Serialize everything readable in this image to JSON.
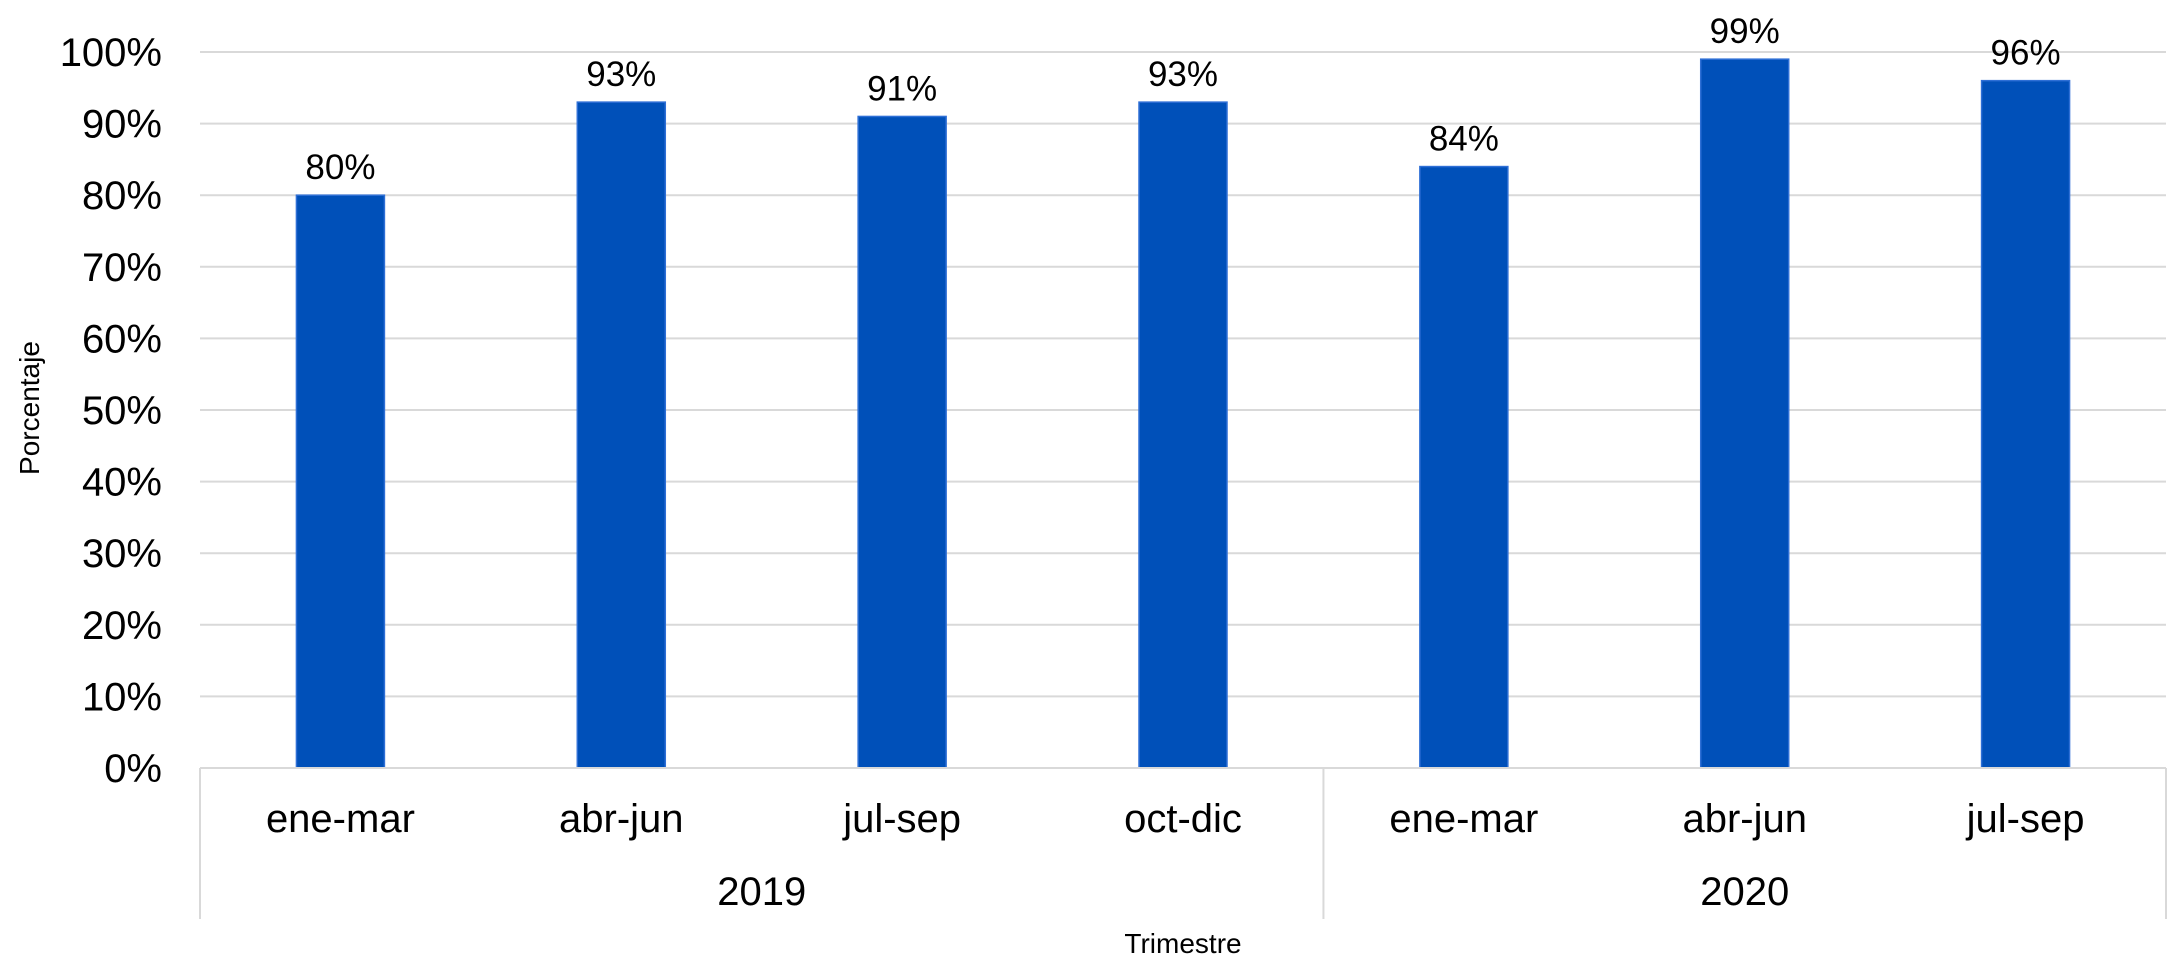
{
  "chart_data": {
    "type": "bar",
    "title": "",
    "xlabel": "Trimestre",
    "ylabel": "Porcentaje",
    "ylim": [
      0,
      100
    ],
    "y_ticks": [
      0,
      10,
      20,
      30,
      40,
      50,
      60,
      70,
      80,
      90,
      100
    ],
    "y_tick_suffix": "%",
    "categories": [
      "ene-mar",
      "abr-jun",
      "jul-sep",
      "oct-dic",
      "ene-mar",
      "abr-jun",
      "jul-sep"
    ],
    "groups": [
      {
        "label": "2019",
        "count": 4
      },
      {
        "label": "2020",
        "count": 3
      }
    ],
    "series": [
      {
        "values": [
          80,
          93,
          91,
          93,
          84,
          99,
          96
        ],
        "color": "#0050B9"
      }
    ],
    "data_labels": [
      "80%",
      "93%",
      "91%",
      "93%",
      "84%",
      "99%",
      "96%"
    ],
    "grid": true,
    "legend": "none"
  }
}
